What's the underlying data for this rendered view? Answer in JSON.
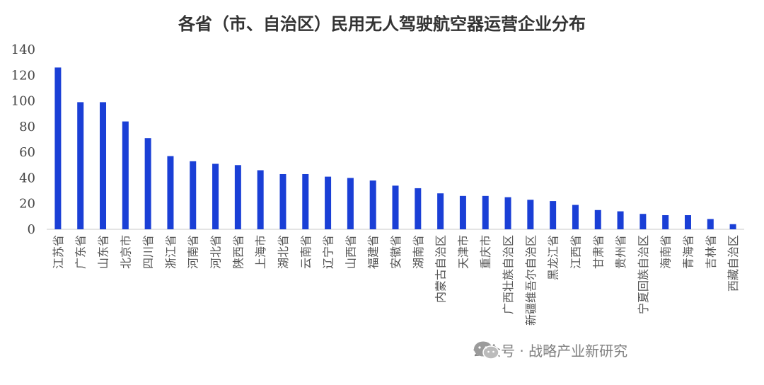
{
  "chart_data": {
    "type": "bar",
    "title": "各省（市、自治区）民用无人驾驶航空器运营企业分布",
    "xlabel": "",
    "ylabel": "",
    "ylim": [
      0,
      140
    ],
    "yticks": [
      0,
      20,
      40,
      60,
      80,
      100,
      120,
      140
    ],
    "grid": false,
    "legend": "none",
    "bar_color": "#1a3fd6",
    "categories": [
      "江苏省",
      "广东省",
      "山东省",
      "北京市",
      "四川省",
      "浙江省",
      "河南省",
      "河北省",
      "陕西省",
      "上海市",
      "湖北省",
      "云南省",
      "辽宁省",
      "山西省",
      "福建省",
      "安徽省",
      "湖南省",
      "内蒙古自治区",
      "天津市",
      "重庆市",
      "广西壮族自治区",
      "新疆维吾尔自治区",
      "黑龙江省",
      "江西省",
      "甘肃省",
      "贵州省",
      "宁夏回族自治区",
      "海南省",
      "青海省",
      "吉林省",
      "西藏自治区"
    ],
    "values": [
      126,
      99,
      99,
      84,
      71,
      57,
      53,
      51,
      50,
      46,
      43,
      43,
      41,
      40,
      38,
      34,
      32,
      28,
      26,
      26,
      25,
      23,
      22,
      19,
      15,
      14,
      12,
      11,
      11,
      8,
      4
    ]
  },
  "watermark": {
    "text": "公众号 · 战略产业新研究",
    "icon": "wechat-icon"
  }
}
